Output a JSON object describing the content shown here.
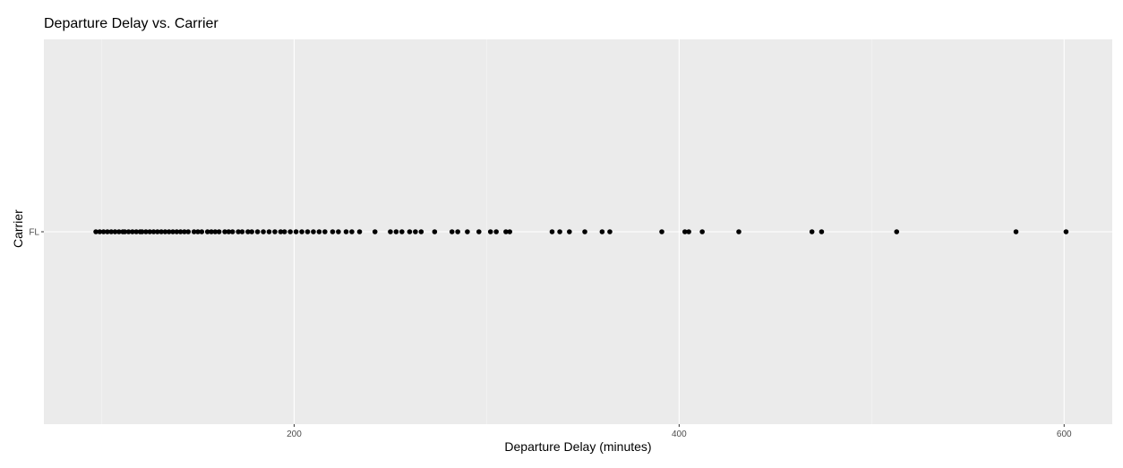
{
  "chart_data": {
    "type": "scatter",
    "title": "Departure Delay vs. Carrier",
    "xlabel": "Departure Delay (minutes)",
    "ylabel": "Carrier",
    "xlim": [
      70,
      625
    ],
    "x_ticks": [
      200,
      400,
      600
    ],
    "y_categories": [
      "FL"
    ],
    "grid": true,
    "series": [
      {
        "category": "FL",
        "color": "#000000",
        "x": [
          97,
          99,
          101,
          103,
          105,
          107,
          109,
          111,
          112,
          114,
          116,
          118,
          120,
          121,
          123,
          125,
          127,
          129,
          131,
          133,
          135,
          137,
          139,
          141,
          143,
          145,
          148,
          150,
          152,
          155,
          157,
          159,
          161,
          164,
          166,
          168,
          171,
          173,
          176,
          178,
          181,
          184,
          187,
          190,
          193,
          195,
          198,
          201,
          204,
          207,
          210,
          213,
          216,
          220,
          223,
          227,
          230,
          234,
          242,
          250,
          253,
          256,
          260,
          263,
          266,
          273,
          282,
          285,
          290,
          296,
          302,
          305,
          310,
          312,
          334,
          338,
          343,
          351,
          360,
          364,
          391,
          403,
          405,
          412,
          431,
          469,
          474,
          513,
          575,
          601
        ]
      }
    ]
  }
}
